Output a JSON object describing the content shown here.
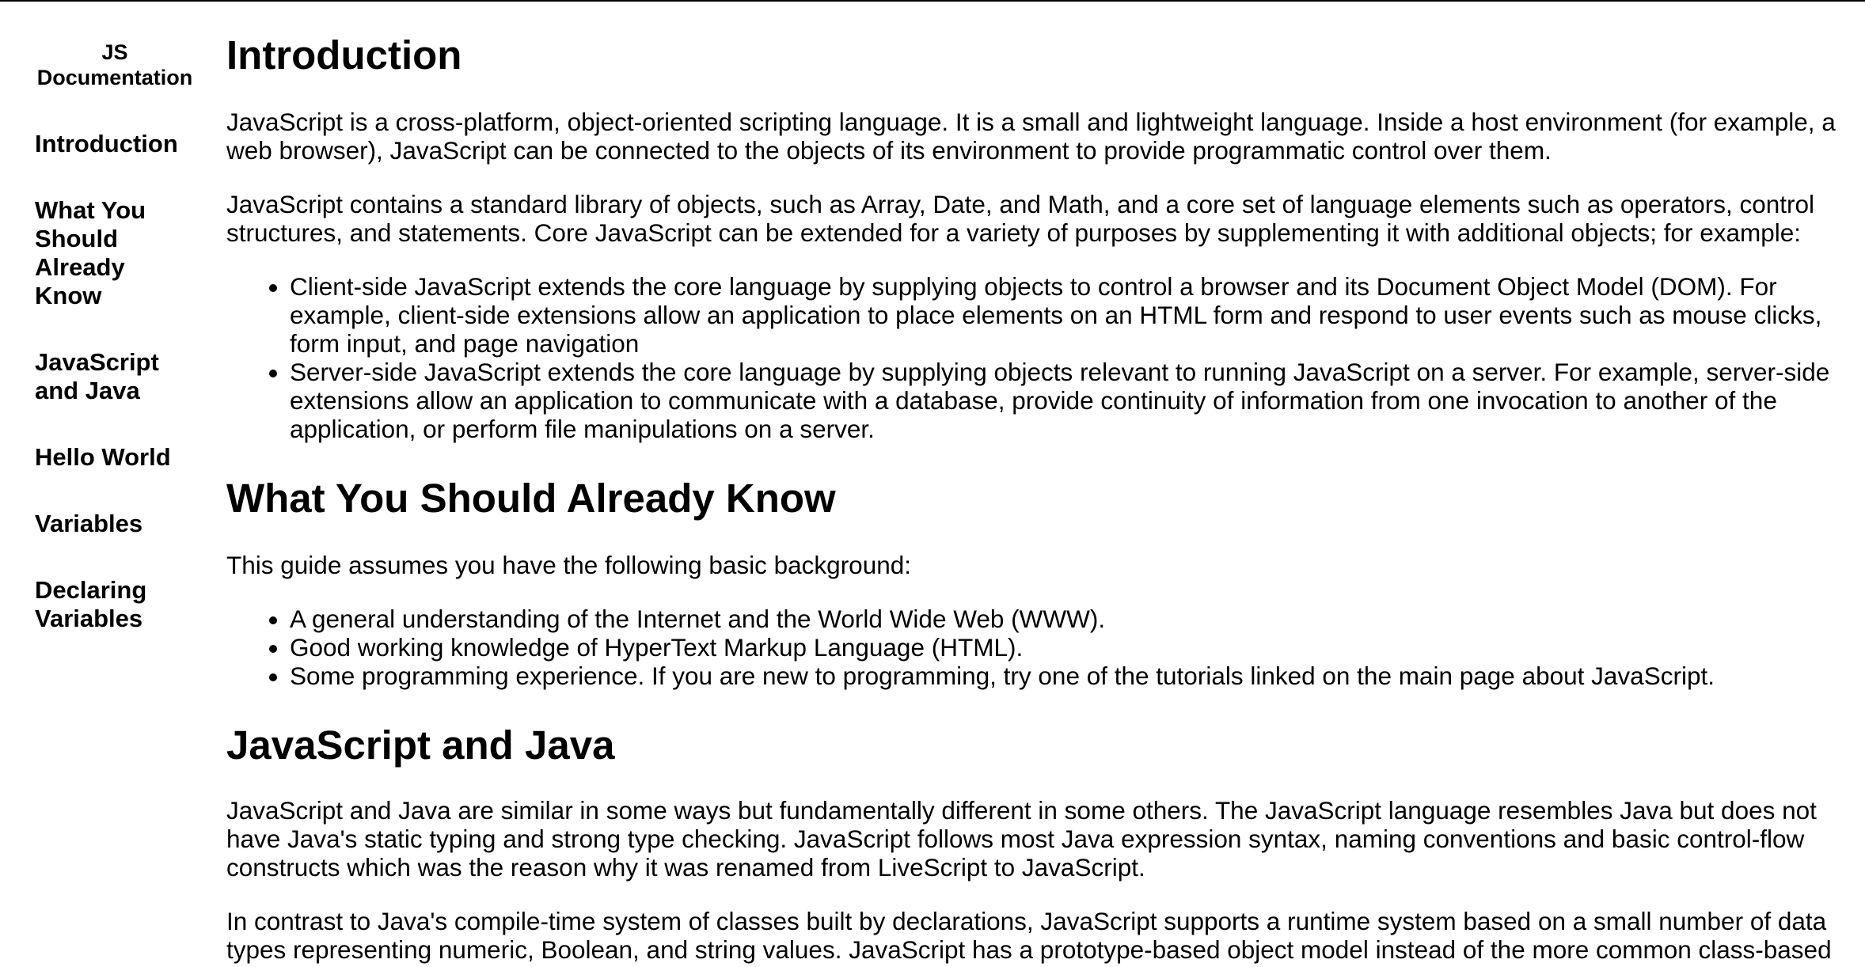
{
  "nav": {
    "header": "JS Documentation",
    "links": [
      "Introduction",
      "What You Should Already Know",
      "JavaScript and Java",
      "Hello World",
      "Variables",
      "Declaring Variables"
    ]
  },
  "sections": {
    "intro": {
      "title": "Introduction",
      "p1": "JavaScript is a cross-platform, object-oriented scripting language. It is a small and lightweight language. Inside a host environment (for example, a web browser), JavaScript can be connected to the objects of its environment to provide programmatic control over them.",
      "p2": "JavaScript contains a standard library of objects, such as Array, Date, and Math, and a core set of language elements such as operators, control structures, and statements. Core JavaScript can be extended for a variety of purposes by supplementing it with additional objects; for example:",
      "bullets": [
        "Client-side JavaScript extends the core language by supplying objects to control a browser and its Document Object Model (DOM). For example, client-side extensions allow an application to place elements on an HTML form and respond to user events such as mouse clicks, form input, and page navigation",
        "Server-side JavaScript extends the core language by supplying objects relevant to running JavaScript on a server. For example, server-side extensions allow an application to communicate with a database, provide continuity of information from one invocation to another of the application, or perform file manipulations on a server."
      ]
    },
    "know": {
      "title": "What You Should Already Know",
      "p1": "This guide assumes you have the following basic background:",
      "bullets": [
        "A general understanding of the Internet and the World Wide Web (WWW).",
        "Good working knowledge of HyperText Markup Language (HTML).",
        "Some programming experience. If you are new to programming, try one of the tutorials linked on the main page about JavaScript."
      ]
    },
    "java": {
      "title": "JavaScript and Java",
      "p1": "JavaScript and Java are similar in some ways but fundamentally different in some others. The JavaScript language resembles Java but does not have Java's static typing and strong type checking. JavaScript follows most Java expression syntax, naming conventions and basic control-flow constructs which was the reason why it was renamed from LiveScript to JavaScript.",
      "p2": "In contrast to Java's compile-time system of classes built by declarations, JavaScript supports a runtime system based on a small number of data types representing numeric, Boolean, and string values. JavaScript has a prototype-based object model instead of the more common class-based object model."
    }
  }
}
